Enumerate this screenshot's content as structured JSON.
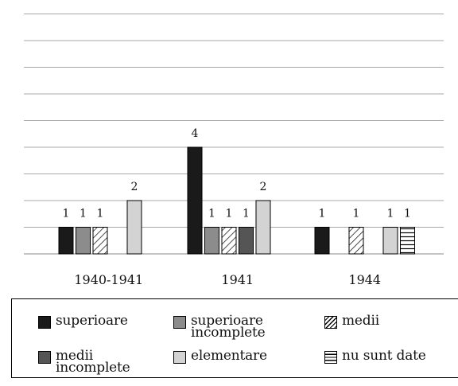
{
  "chart_data": {
    "type": "bar",
    "categories": [
      "1940-1941",
      "1941",
      "1944"
    ],
    "ylim": [
      0,
      9
    ],
    "grid": true,
    "legend_position": "bottom",
    "series": [
      {
        "name": "superioare",
        "fill": "#1a1a1a",
        "pattern": "solid",
        "values": [
          1,
          4,
          1
        ],
        "labels": [
          "1",
          "4",
          "1"
        ]
      },
      {
        "name": "superioare\nincomplete",
        "fill": "#8c8c8c",
        "pattern": "solid",
        "values": [
          1,
          1,
          0
        ],
        "labels": [
          "1",
          "1",
          ""
        ]
      },
      {
        "name": "medii",
        "fill": "#ffffff",
        "pattern": "diagonal",
        "values": [
          1,
          1,
          1
        ],
        "labels": [
          "1",
          "1",
          "1"
        ]
      },
      {
        "name": "medii\nincomplete",
        "fill": "#555555",
        "pattern": "solid",
        "values": [
          0,
          1,
          0
        ],
        "labels": [
          "",
          "1",
          ""
        ]
      },
      {
        "name": "elementare",
        "fill": "#d3d3d3",
        "pattern": "solid",
        "values": [
          2,
          2,
          1
        ],
        "labels": [
          "2",
          "2",
          "1"
        ]
      },
      {
        "name": "nu sunt date",
        "fill": "#ffffff",
        "pattern": "horizontal",
        "values": [
          0,
          0,
          1
        ],
        "labels": [
          "",
          "",
          "1"
        ]
      }
    ]
  }
}
